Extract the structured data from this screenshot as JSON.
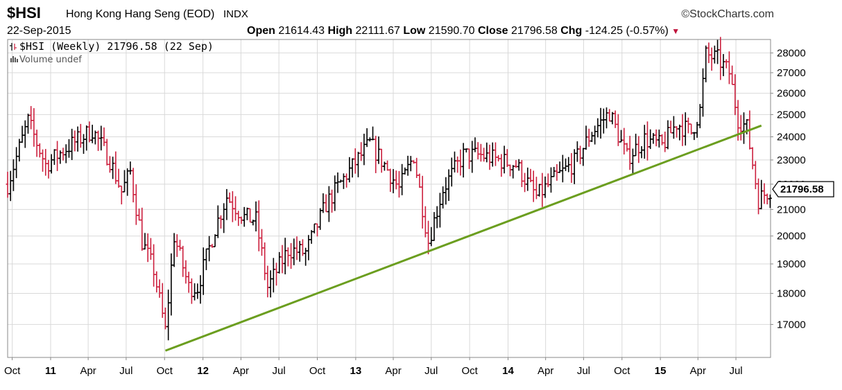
{
  "header": {
    "symbol": "$HSI",
    "name": "Hong Kong Hang Seng (EOD)",
    "exchange": "INDX",
    "credit": "©StockCharts.com",
    "date": "22-Sep-2015",
    "open_label": "Open",
    "open": "21614.43",
    "high_label": "High",
    "high": "22111.67",
    "low_label": "Low",
    "low": "21590.70",
    "close_label": "Close",
    "close": "21796.58",
    "chg_label": "Chg",
    "chg": "-124.25 (-0.57%)",
    "chg_arrow": "▼"
  },
  "legend": {
    "main": "$HSI (Weekly) 21796.58 (22 Sep)",
    "volume": "Volume undef"
  },
  "colors": {
    "up": "#000000",
    "down": "#cc1f3d",
    "trendline": "#6b9e1f",
    "grid": "#d9d9d9"
  },
  "chart_data": {
    "type": "line",
    "chart_style": "weekly OHLC bars",
    "y_scale": "log",
    "ylim": [
      16000,
      28700
    ],
    "y_ticks": [
      17000,
      18000,
      19000,
      20000,
      21000,
      22000,
      23000,
      24000,
      25000,
      26000,
      27000,
      28000
    ],
    "x_range": [
      "2010-09-20",
      "2015-09-22"
    ],
    "x_ticks": [
      {
        "date": "2010-10-01",
        "label": "Oct",
        "year": false
      },
      {
        "date": "2011-01-01",
        "label": "11",
        "year": true
      },
      {
        "date": "2011-04-01",
        "label": "Apr",
        "year": false
      },
      {
        "date": "2011-07-01",
        "label": "Jul",
        "year": false
      },
      {
        "date": "2011-10-01",
        "label": "Oct",
        "year": false
      },
      {
        "date": "2012-01-01",
        "label": "12",
        "year": true
      },
      {
        "date": "2012-04-01",
        "label": "Apr",
        "year": false
      },
      {
        "date": "2012-07-01",
        "label": "Jul",
        "year": false
      },
      {
        "date": "2012-10-01",
        "label": "Oct",
        "year": false
      },
      {
        "date": "2013-01-01",
        "label": "13",
        "year": true
      },
      {
        "date": "2013-04-01",
        "label": "Apr",
        "year": false
      },
      {
        "date": "2013-07-01",
        "label": "Jul",
        "year": false
      },
      {
        "date": "2013-10-01",
        "label": "Oct",
        "year": false
      },
      {
        "date": "2014-01-01",
        "label": "14",
        "year": true
      },
      {
        "date": "2014-04-01",
        "label": "Apr",
        "year": false
      },
      {
        "date": "2014-07-01",
        "label": "Jul",
        "year": false
      },
      {
        "date": "2014-10-01",
        "label": "Oct",
        "year": false
      },
      {
        "date": "2015-01-01",
        "label": "15",
        "year": true
      },
      {
        "date": "2015-04-01",
        "label": "Apr",
        "year": false
      },
      {
        "date": "2015-07-01",
        "label": "Jul",
        "year": false
      }
    ],
    "last_value_label": "21796.58",
    "last_value": 21796.58,
    "close_path": [
      {
        "date": "2010-09-20",
        "value": 22000
      },
      {
        "date": "2010-11-08",
        "value": 24700
      },
      {
        "date": "2010-12-20",
        "value": 22800
      },
      {
        "date": "2011-02-07",
        "value": 23500
      },
      {
        "date": "2011-04-11",
        "value": 24300
      },
      {
        "date": "2011-05-23",
        "value": 23000
      },
      {
        "date": "2011-06-20",
        "value": 21700
      },
      {
        "date": "2011-07-11",
        "value": 22500
      },
      {
        "date": "2011-08-08",
        "value": 19800
      },
      {
        "date": "2011-09-05",
        "value": 18800
      },
      {
        "date": "2011-10-03",
        "value": 16800
      },
      {
        "date": "2011-10-24",
        "value": 20000
      },
      {
        "date": "2011-11-28",
        "value": 18200
      },
      {
        "date": "2011-12-19",
        "value": 18200
      },
      {
        "date": "2012-01-30",
        "value": 20300
      },
      {
        "date": "2012-02-27",
        "value": 21500
      },
      {
        "date": "2012-04-09",
        "value": 20700
      },
      {
        "date": "2012-05-07",
        "value": 20600
      },
      {
        "date": "2012-06-04",
        "value": 18200
      },
      {
        "date": "2012-07-23",
        "value": 19500
      },
      {
        "date": "2012-09-03",
        "value": 19400
      },
      {
        "date": "2012-10-22",
        "value": 21200
      },
      {
        "date": "2012-12-10",
        "value": 22400
      },
      {
        "date": "2013-02-04",
        "value": 23700
      },
      {
        "date": "2013-03-11",
        "value": 22800
      },
      {
        "date": "2013-04-15",
        "value": 21800
      },
      {
        "date": "2013-05-20",
        "value": 23200
      },
      {
        "date": "2013-06-24",
        "value": 19800
      },
      {
        "date": "2013-07-29",
        "value": 21800
      },
      {
        "date": "2013-09-16",
        "value": 23200
      },
      {
        "date": "2013-10-28",
        "value": 23200
      },
      {
        "date": "2013-12-09",
        "value": 23000
      },
      {
        "date": "2014-01-20",
        "value": 22800
      },
      {
        "date": "2014-03-10",
        "value": 21500
      },
      {
        "date": "2014-04-28",
        "value": 22300
      },
      {
        "date": "2014-06-09",
        "value": 22900
      },
      {
        "date": "2014-07-21",
        "value": 24200
      },
      {
        "date": "2014-09-01",
        "value": 25100
      },
      {
        "date": "2014-10-13",
        "value": 23100
      },
      {
        "date": "2014-11-24",
        "value": 23900
      },
      {
        "date": "2015-01-05",
        "value": 23600
      },
      {
        "date": "2015-02-09",
        "value": 24600
      },
      {
        "date": "2015-03-16",
        "value": 24200
      },
      {
        "date": "2015-04-06",
        "value": 25200
      },
      {
        "date": "2015-04-20",
        "value": 27900
      },
      {
        "date": "2015-05-18",
        "value": 27700
      },
      {
        "date": "2015-06-15",
        "value": 27000
      },
      {
        "date": "2015-07-06",
        "value": 24800
      },
      {
        "date": "2015-07-27",
        "value": 24400
      },
      {
        "date": "2015-08-24",
        "value": 21400
      },
      {
        "date": "2015-09-07",
        "value": 21600
      },
      {
        "date": "2015-09-22",
        "value": 21796.58
      }
    ],
    "trendline": {
      "start": {
        "date": "2011-10-03",
        "value": 16200
      },
      "end": {
        "date": "2015-08-31",
        "value": 24500
      }
    }
  }
}
